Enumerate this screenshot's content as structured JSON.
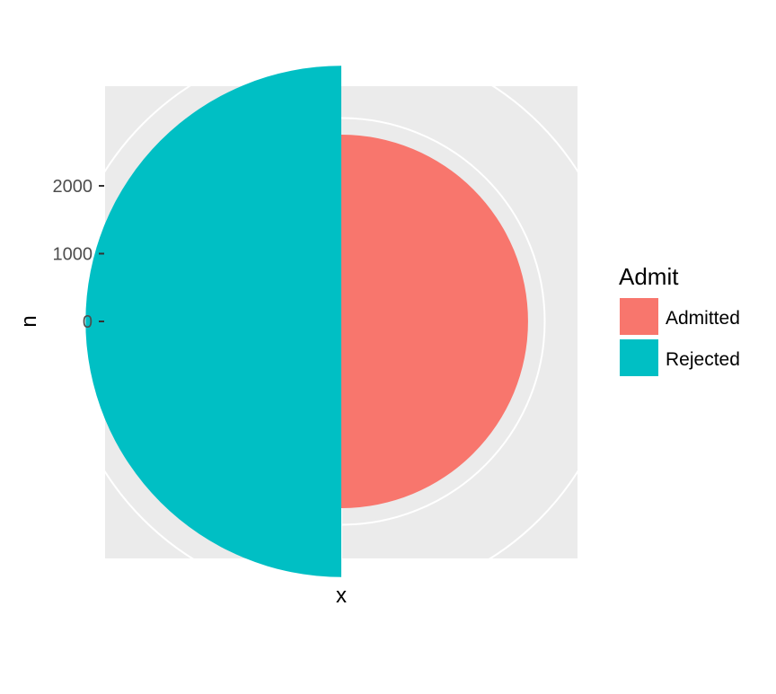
{
  "chart_data": {
    "type": "pie",
    "variant": "coord_polar radial bars (ggplot2)",
    "title": "",
    "xlabel": "x",
    "ylabel": "n",
    "categories": [
      "Admitted",
      "Rejected"
    ],
    "values": [
      1755,
      2771
    ],
    "y_ticks": [
      0,
      1000,
      2000
    ],
    "y_tick_labels": [
      "0",
      "1000",
      "2000"
    ],
    "ylim": [
      -1000,
      3130
    ],
    "grid": true,
    "legend": {
      "title": "Admit",
      "placement": "right",
      "entries": [
        {
          "label": "Admitted",
          "color": "#F8766D"
        },
        {
          "label": "Rejected",
          "color": "#00BFC4"
        }
      ]
    },
    "colors": {
      "panel": "#EBEBEB",
      "grid": "#FFFFFF",
      "admitted": "#F8766D",
      "rejected": "#00BFC4",
      "text": "#000000",
      "tick_text": "#4D4D4D",
      "tick_mark": "#333333"
    }
  }
}
